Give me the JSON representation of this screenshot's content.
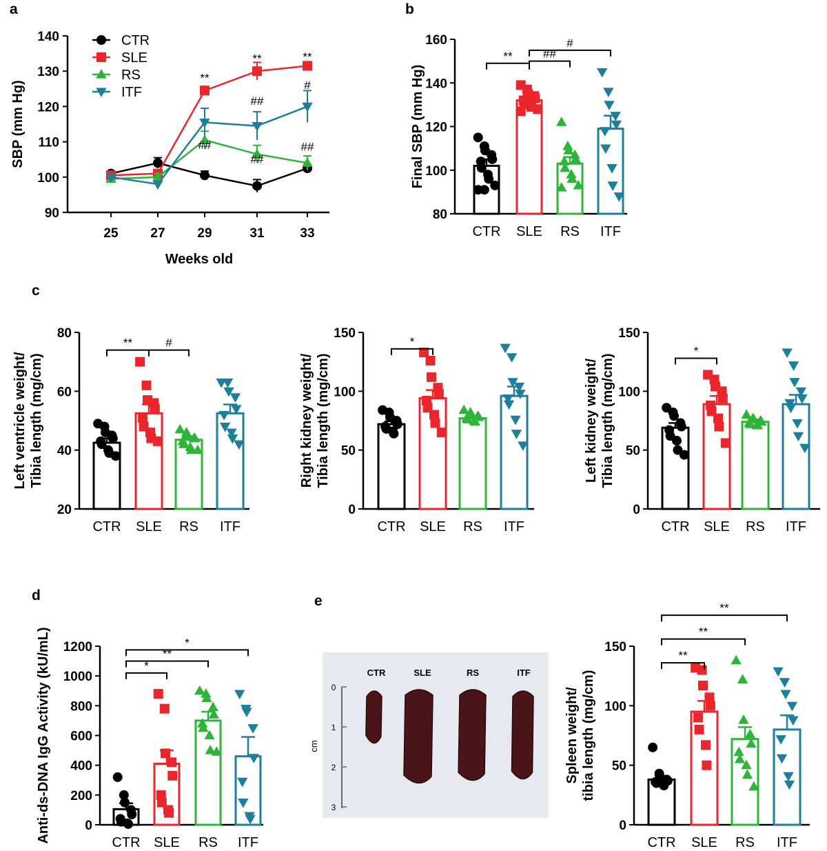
{
  "colors": {
    "CTR": "#000000",
    "SLE": "#e8262b",
    "RS": "#2fb43a",
    "ITF": "#1d7f9a"
  },
  "panel_labels": [
    "a",
    "b",
    "c",
    "d",
    "e"
  ],
  "chart_data": [
    {
      "panel": "a",
      "type": "line",
      "xlabel": "Weeks old",
      "ylabel": "SBP (mm Hg)",
      "x": [
        25,
        27,
        29,
        31,
        33
      ],
      "ylim": [
        90,
        140
      ],
      "yticks": [
        90,
        100,
        110,
        120,
        130,
        140
      ],
      "legend": "top-left",
      "series": [
        {
          "name": "CTR",
          "marker": "circle",
          "values": [
            101,
            104,
            100.5,
            97.5,
            102.5
          ],
          "err": [
            0.7,
            1.5,
            1.2,
            1.8,
            1.0
          ]
        },
        {
          "name": "SLE",
          "marker": "square",
          "values": [
            100.5,
            101,
            124.5,
            130,
            131.5
          ],
          "err": [
            0.7,
            1.0,
            1.2,
            2.5,
            1.2
          ]
        },
        {
          "name": "RS",
          "marker": "triangle",
          "values": [
            99.5,
            100,
            110.5,
            106.5,
            104
          ],
          "err": [
            0.8,
            1.0,
            2.5,
            2.5,
            2.0
          ]
        },
        {
          "name": "ITF",
          "marker": "tri-down",
          "values": [
            100,
            98,
            115.5,
            114.5,
            120
          ],
          "err": [
            0.8,
            0.8,
            4.0,
            4.0,
            4.5
          ]
        }
      ],
      "annotations": [
        {
          "x": 29,
          "y": 127,
          "text": "**"
        },
        {
          "x": 31,
          "y": 132.5,
          "text": "**"
        },
        {
          "x": 33,
          "y": 133,
          "text": "**"
        },
        {
          "x": 31,
          "y": 120.5,
          "text": "##"
        },
        {
          "x": 33,
          "y": 125,
          "text": "#"
        },
        {
          "x": 29,
          "y": 108,
          "text": "##"
        },
        {
          "x": 31,
          "y": 104,
          "text": "##"
        },
        {
          "x": 33,
          "y": 107.5,
          "text": "##"
        }
      ]
    },
    {
      "panel": "b",
      "type": "bar",
      "ylabel": "Final SBP (mm Hg)",
      "categories": [
        "CTR",
        "SLE",
        "RS",
        "ITF"
      ],
      "values": [
        102,
        132,
        103,
        119
      ],
      "sem": [
        3,
        2,
        3,
        6
      ],
      "ylim": [
        80,
        160
      ],
      "yticks": [
        80,
        100,
        120,
        140,
        160
      ],
      "points": [
        [
          115,
          111,
          109,
          107,
          105,
          104,
          101,
          98,
          96,
          93,
          91,
          91
        ],
        [
          139,
          137,
          135,
          134,
          133,
          132,
          131,
          130,
          129,
          128,
          127
        ],
        [
          122,
          111,
          109,
          107,
          105,
          104,
          101,
          98,
          96,
          93,
          92
        ],
        [
          145,
          136,
          130,
          125,
          121,
          118,
          110,
          101,
          93,
          88
        ]
      ],
      "brackets": [
        {
          "from": 0,
          "to": 1,
          "y": 149,
          "text": "**"
        },
        {
          "from": 1,
          "to": 2,
          "y": 150,
          "text": "##"
        },
        {
          "from": 1,
          "to": 3,
          "y": 155,
          "text": "#"
        }
      ]
    },
    {
      "panel": "c1",
      "type": "bar",
      "ylabel": "Left ventricle weight/ Tibia length (mg/cm)",
      "categories": [
        "CTR",
        "SLE",
        "RS",
        "ITF"
      ],
      "values": [
        42.5,
        52.5,
        43.5,
        52.5
      ],
      "sem": [
        1.5,
        3.0,
        1.2,
        3.0
      ],
      "ylim": [
        20,
        80
      ],
      "yticks": [
        20,
        40,
        60,
        80
      ],
      "points": [
        [
          49,
          48,
          46,
          45,
          44,
          43,
          42,
          40,
          39,
          38
        ],
        [
          70,
          62,
          57,
          56,
          54,
          51,
          48,
          46,
          44,
          43
        ],
        [
          47,
          46,
          45,
          44,
          44,
          43,
          42,
          41,
          40,
          40
        ],
        [
          63,
          63,
          60,
          58,
          54,
          52,
          48,
          46,
          44,
          42
        ]
      ],
      "brackets": [
        {
          "from": 0,
          "to": 1,
          "y": 74,
          "text": "**"
        },
        {
          "from": 1,
          "to": 2,
          "y": 74,
          "text": "#"
        }
      ]
    },
    {
      "panel": "c2",
      "type": "bar",
      "ylabel": "Right kidney weight/ Tibia length (mg/cm)",
      "categories": [
        "CTR",
        "SLE",
        "RS",
        "ITF"
      ],
      "values": [
        72,
        94,
        77,
        96
      ],
      "sem": [
        2.5,
        7,
        2,
        8
      ],
      "ylim": [
        0,
        150
      ],
      "yticks": [
        0,
        50,
        100,
        150
      ],
      "points": [
        [
          84,
          82,
          78,
          75,
          72,
          70,
          68,
          66,
          64
        ],
        [
          133,
          126,
          112,
          103,
          98,
          92,
          86,
          80,
          73,
          65
        ],
        [
          84,
          82,
          80,
          79,
          78,
          77,
          76,
          75,
          74
        ],
        [
          137,
          129,
          108,
          104,
          98,
          94,
          89,
          76,
          64,
          54
        ]
      ],
      "brackets": [
        {
          "from": 0,
          "to": 1,
          "y": 136,
          "text": "*"
        }
      ]
    },
    {
      "panel": "c3",
      "type": "bar",
      "ylabel": "Left kidney weight/ Tibia length (mg/cm)",
      "categories": [
        "CTR",
        "SLE",
        "RS",
        "ITF"
      ],
      "values": [
        69,
        89,
        74,
        89
      ],
      "sem": [
        4,
        7,
        2,
        8
      ],
      "ylim": [
        0,
        150
      ],
      "yticks": [
        0,
        50,
        100,
        150
      ],
      "points": [
        [
          86,
          82,
          79,
          73,
          70,
          67,
          62,
          58,
          50,
          46
        ],
        [
          114,
          110,
          104,
          100,
          94,
          88,
          83,
          77,
          70,
          56
        ],
        [
          80,
          77,
          76,
          75,
          74,
          73,
          72,
          71,
          71
        ],
        [
          133,
          122,
          108,
          100,
          94,
          90,
          86,
          73,
          62,
          52
        ]
      ],
      "brackets": [
        {
          "from": 0,
          "to": 1,
          "y": 128,
          "text": "*"
        }
      ]
    },
    {
      "panel": "d",
      "type": "bar",
      "ylabel": "Anti-ds-DNA IgG Activity (kU/mL)",
      "categories": [
        "CTR",
        "SLE",
        "RS",
        "ITF"
      ],
      "values": [
        105,
        410,
        700,
        460
      ],
      "sem": [
        40,
        90,
        60,
        130
      ],
      "ylim": [
        0,
        1200
      ],
      "yticks": [
        0,
        200,
        400,
        600,
        800,
        1000,
        1200
      ],
      "points": [
        [
          320,
          200,
          150,
          100,
          70,
          40,
          20,
          10,
          5
        ],
        [
          880,
          780,
          480,
          420,
          330,
          200,
          150,
          100,
          80
        ],
        [
          900,
          880,
          850,
          790,
          740,
          680,
          650,
          600,
          500,
          490
        ],
        [
          880,
          780,
          760,
          650,
          450,
          290,
          150,
          60,
          40
        ]
      ],
      "brackets": [
        {
          "from": 0,
          "to": 1,
          "y": 1020,
          "text": "*"
        },
        {
          "from": 0,
          "to": 2,
          "y": 1100,
          "text": "**"
        },
        {
          "from": 0,
          "to": 3,
          "y": 1175,
          "text": "*"
        }
      ]
    },
    {
      "panel": "e",
      "type": "bar",
      "ylabel": "Spleen weight/ tibia length (mg/cm)",
      "categories": [
        "CTR",
        "SLE",
        "RS",
        "ITF"
      ],
      "values": [
        38,
        95,
        72,
        80
      ],
      "sem": [
        3,
        9,
        10,
        12
      ],
      "ylim": [
        0,
        150
      ],
      "yticks": [
        0,
        50,
        100,
        150
      ],
      "points": [
        [
          65,
          43,
          40,
          38,
          37,
          36,
          35,
          34,
          33
        ],
        [
          132,
          130,
          117,
          107,
          100,
          90,
          80,
          67,
          50
        ],
        [
          138,
          122,
          88,
          76,
          68,
          61,
          55,
          50,
          42,
          32
        ],
        [
          129,
          120,
          110,
          100,
          88,
          72,
          56,
          41,
          34
        ]
      ],
      "brackets": [
        {
          "from": 0,
          "to": 1,
          "y": 136,
          "text": "**"
        },
        {
          "from": 0,
          "to": 2,
          "y": 156,
          "text": "**"
        },
        {
          "from": 0,
          "to": 3,
          "y": 176,
          "text": "**"
        }
      ]
    }
  ],
  "photo": {
    "labels": [
      "CTR",
      "SLE",
      "RS",
      "ITF"
    ],
    "scale_ticks": [
      "0",
      "1",
      "2",
      "3"
    ],
    "scale_unit": "cm"
  }
}
